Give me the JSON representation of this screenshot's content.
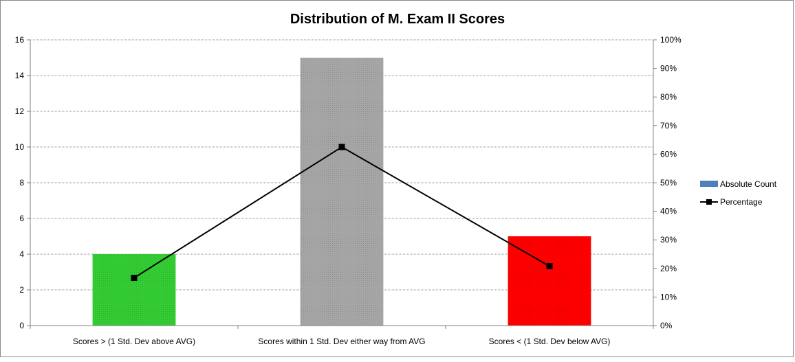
{
  "chart_data": {
    "type": "bar",
    "title": "Distribution of M. Exam II Scores",
    "categories": [
      "Scores > (1 Std. Dev above AVG)",
      "Scores within 1 Std. Dev either way from AVG",
      "Scores < (1 Std. Dev below AVG)"
    ],
    "series": [
      {
        "name": "Absolute Count",
        "type": "bar",
        "axis": "left",
        "values": [
          4,
          15,
          5
        ],
        "colors": [
          "#33cc33",
          "#a6a6a6",
          "#ff0000"
        ],
        "legend_color": "#4f81bd"
      },
      {
        "name": "Percentage",
        "type": "line",
        "axis": "right",
        "values": [
          16.7,
          62.5,
          20.8
        ],
        "color": "#000000"
      }
    ],
    "y_left": {
      "ylim": [
        0,
        16
      ],
      "ticks": [
        "0",
        "2",
        "4",
        "6",
        "8",
        "10",
        "12",
        "14",
        "16"
      ]
    },
    "y_right": {
      "ylim": [
        0,
        100
      ],
      "ticks": [
        "0%",
        "10%",
        "20%",
        "30%",
        "40%",
        "50%",
        "60%",
        "70%",
        "80%",
        "90%",
        "100%"
      ]
    },
    "xlabel": "",
    "ylabel": "",
    "grid": true,
    "legend_position": "right"
  }
}
